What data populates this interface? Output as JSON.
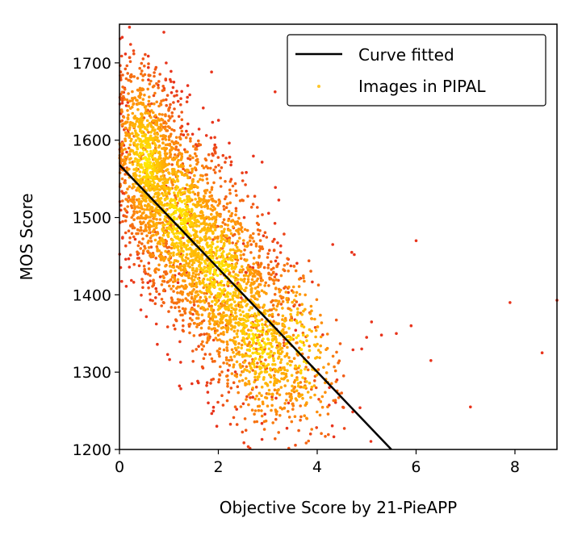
{
  "chart_data": {
    "type": "scatter",
    "title": "",
    "xlabel": "Objective Score by 21-PieAPP",
    "ylabel": "MOS Score",
    "xlim": [
      0,
      8.85
    ],
    "ylim": [
      1200,
      1750
    ],
    "x_ticks": [
      0,
      2,
      4,
      6,
      8
    ],
    "y_ticks": [
      1200,
      1300,
      1400,
      1500,
      1600,
      1700
    ],
    "grid": false,
    "legend_position": "top-right",
    "colors": {
      "fit_line": "#000000",
      "points_dense": "#ffe800",
      "points_sparse": "#e8341c",
      "legend_marker": "#ffc72a"
    },
    "series": [
      {
        "name": "Curve fitted",
        "kind": "line",
        "points": [
          [
            0,
            1568
          ],
          [
            5.5,
            1200
          ]
        ]
      },
      {
        "name": "Images in PIPAL",
        "kind": "scatter",
        "clusters": [
          {
            "x_center": 0.55,
            "y_center": 1575,
            "x_spread": 0.35,
            "y_spread": 60,
            "count": 900
          },
          {
            "x_center": 1.2,
            "y_center": 1500,
            "x_spread": 0.55,
            "y_spread": 65,
            "count": 1100
          },
          {
            "x_center": 2.0,
            "y_center": 1430,
            "x_spread": 0.6,
            "y_spread": 65,
            "count": 1000
          },
          {
            "x_center": 2.8,
            "y_center": 1340,
            "x_spread": 0.55,
            "y_spread": 60,
            "count": 700
          },
          {
            "x_center": 3.6,
            "y_center": 1330,
            "x_spread": 0.45,
            "y_spread": 60,
            "count": 260
          }
        ],
        "outliers": [
          [
            4.7,
            1455
          ],
          [
            4.75,
            1452
          ],
          [
            5.0,
            1345
          ],
          [
            5.1,
            1365
          ],
          [
            5.3,
            1348
          ],
          [
            5.6,
            1350
          ],
          [
            5.9,
            1360
          ],
          [
            6.0,
            1470
          ],
          [
            6.3,
            1315
          ],
          [
            7.1,
            1255
          ],
          [
            7.9,
            1390
          ],
          [
            8.55,
            1325
          ],
          [
            8.85,
            1393
          ],
          [
            4.4,
            1290
          ],
          [
            4.9,
            1330
          ]
        ]
      }
    ]
  }
}
